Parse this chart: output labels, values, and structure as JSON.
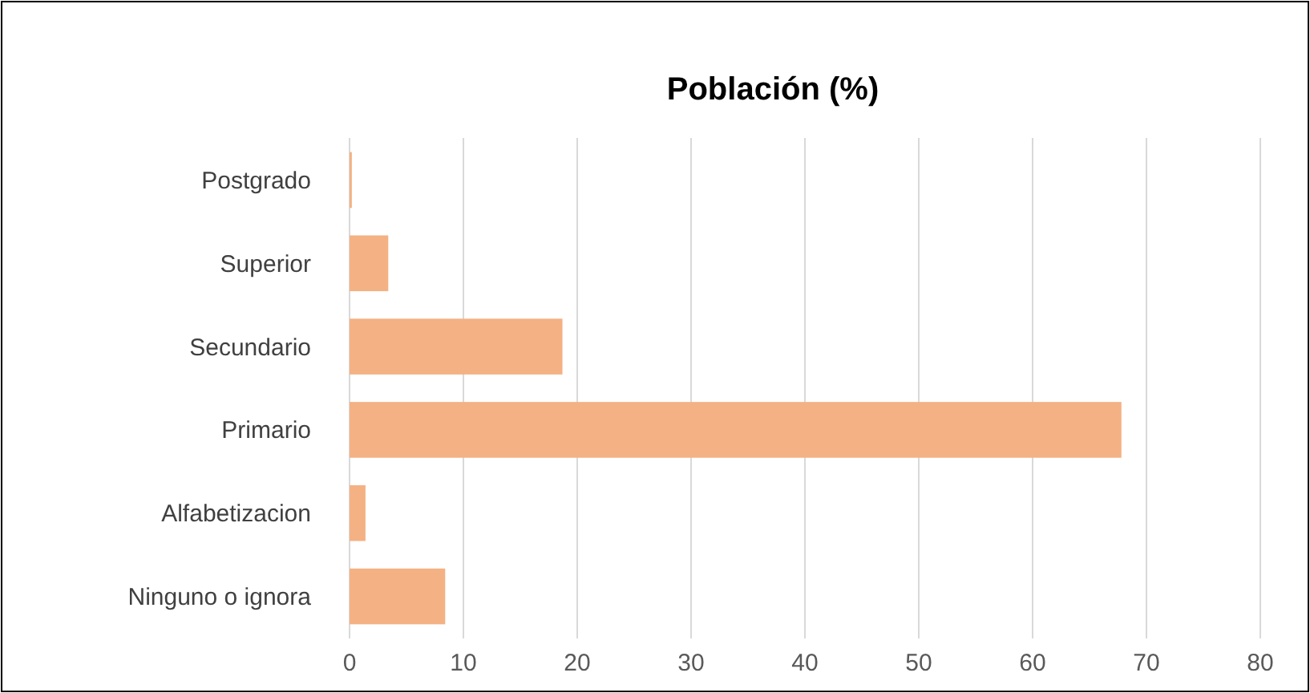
{
  "chart_data": {
    "type": "bar",
    "title": "Población (%)",
    "orientation": "horizontal",
    "categories": [
      "Postgrado",
      "Superior",
      "Secundario",
      "Primario",
      "Alfabetizacion",
      "Ninguno o ignora"
    ],
    "values": [
      0.2,
      3.4,
      18.7,
      67.8,
      1.4,
      8.4
    ],
    "color": "#f4b183",
    "xlim": [
      0,
      80
    ],
    "xticks": [
      0,
      10,
      20,
      30,
      40,
      50,
      60,
      70,
      80
    ],
    "grid": "x"
  }
}
